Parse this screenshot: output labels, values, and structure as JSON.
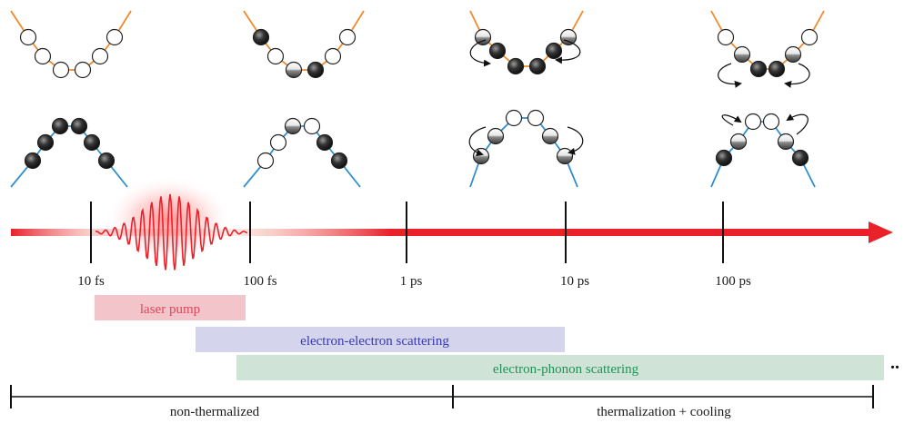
{
  "timeline": {
    "ticks": [
      "10 fs",
      "100 fs",
      "1 ps",
      "10 ps",
      "100 ps"
    ],
    "arrow_color": "#e8212b"
  },
  "processes": [
    {
      "label": "laser pump",
      "fill": "#f3c5cb",
      "text_color": "#e0455a"
    },
    {
      "label": "electron-electron scattering",
      "fill": "#d4d4ec",
      "text_color": "#3a3ab0"
    },
    {
      "label": "electron-phonon scattering",
      "fill": "#cfe4d6",
      "text_color": "#23915a"
    }
  ],
  "ellipsis": "..",
  "regimes": [
    "non-thermalized",
    "thermalization + cooling"
  ],
  "colors": {
    "upper_band": "#f08a2a",
    "lower_band": "#2f8fd0",
    "pulse": "#e8212b"
  }
}
